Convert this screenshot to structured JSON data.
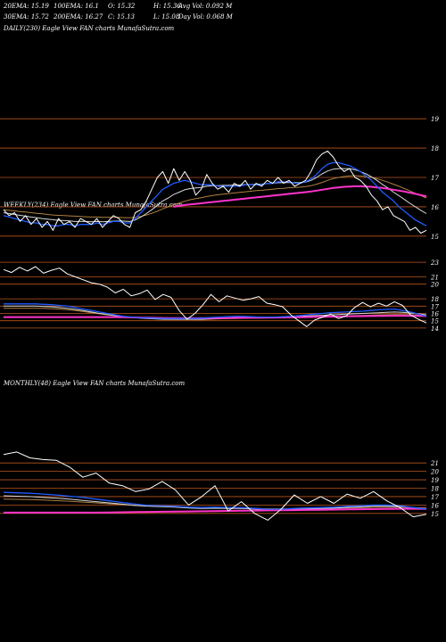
{
  "header": {
    "items": [
      {
        "key": "ema20",
        "text": "20EMA: 15.19"
      },
      {
        "key": "ema100",
        "text": "100EMA: 16.1"
      },
      {
        "key": "open",
        "text": "O: 15.32"
      },
      {
        "key": "high",
        "text": "H: 15.36"
      },
      {
        "key": "avgvol",
        "text": "Avg Vol: 0.092  M"
      },
      {
        "key": "ema30",
        "text": "30EMA: 15.72"
      },
      {
        "key": "ema200",
        "text": "200EMA: 16.27"
      },
      {
        "key": "close",
        "text": "C: 15.13"
      },
      {
        "key": "low",
        "text": "L: 15.08"
      },
      {
        "key": "dayvol",
        "text": "Day Vol: 0.068  M"
      }
    ]
  },
  "colors": {
    "price": "#ffffff",
    "ema_fast": "#1f5bff",
    "ema_mid": "#d8d8d8",
    "ema_slow": "#b08040",
    "ema_long": "#ff33cc",
    "grid": "#b8561e"
  },
  "chart_data": [
    {
      "type": "line",
      "label": "DAILY(230) Eagle  View  FAN  charts MunafaSutra.com",
      "yticks": [
        15,
        16,
        17,
        18,
        19
      ],
      "ylim": [
        14.6,
        19.4
      ],
      "price": [
        15.9,
        15.7,
        15.8,
        15.5,
        15.7,
        15.4,
        15.6,
        15.3,
        15.5,
        15.2,
        15.6,
        15.4,
        15.5,
        15.3,
        15.6,
        15.5,
        15.4,
        15.6,
        15.3,
        15.5,
        15.7,
        15.6,
        15.4,
        15.3,
        15.8,
        15.9,
        16.2,
        16.6,
        17.0,
        17.2,
        16.8,
        17.3,
        16.9,
        17.2,
        16.9,
        16.4,
        16.6,
        17.1,
        16.8,
        16.6,
        16.7,
        16.5,
        16.8,
        16.7,
        16.9,
        16.6,
        16.8,
        16.7,
        16.9,
        16.8,
        17.0,
        16.8,
        16.9,
        16.7,
        16.8,
        16.9,
        17.2,
        17.6,
        17.8,
        17.9,
        17.7,
        17.4,
        17.2,
        17.3,
        17.0,
        16.9,
        16.7,
        16.4,
        16.2,
        15.9,
        16.0,
        15.7,
        15.6,
        15.5,
        15.2,
        15.3,
        15.1,
        15.2
      ],
      "ema_fast": [
        15.7,
        15.65,
        15.6,
        15.55,
        15.5,
        15.45,
        15.45,
        15.4,
        15.4,
        15.35,
        15.35,
        15.4,
        15.4,
        15.35,
        15.4,
        15.4,
        15.4,
        15.45,
        15.4,
        15.45,
        15.5,
        15.5,
        15.45,
        15.45,
        15.6,
        15.8,
        16.0,
        16.2,
        16.4,
        16.6,
        16.7,
        16.8,
        16.85,
        16.9,
        16.85,
        16.8,
        16.75,
        16.75,
        16.75,
        16.7,
        16.7,
        16.7,
        16.7,
        16.7,
        16.75,
        16.75,
        16.75,
        16.75,
        16.8,
        16.8,
        16.85,
        16.85,
        16.85,
        16.8,
        16.8,
        16.85,
        16.95,
        17.1,
        17.3,
        17.45,
        17.5,
        17.5,
        17.45,
        17.4,
        17.3,
        17.2,
        17.05,
        16.9,
        16.7,
        16.5,
        16.35,
        16.2,
        16.0,
        15.85,
        15.7,
        15.55,
        15.45,
        15.35
      ],
      "ema_mid": [
        15.8,
        15.77,
        15.74,
        15.71,
        15.68,
        15.65,
        15.63,
        15.6,
        15.58,
        15.56,
        15.54,
        15.53,
        15.52,
        15.5,
        15.5,
        15.5,
        15.49,
        15.5,
        15.49,
        15.5,
        15.51,
        15.52,
        15.51,
        15.5,
        15.55,
        15.65,
        15.77,
        15.9,
        16.05,
        16.2,
        16.3,
        16.42,
        16.5,
        16.58,
        16.62,
        16.64,
        16.66,
        16.7,
        16.72,
        16.72,
        16.73,
        16.73,
        16.74,
        16.74,
        16.76,
        16.76,
        16.77,
        16.77,
        16.79,
        16.8,
        16.82,
        16.82,
        16.83,
        16.82,
        16.82,
        16.84,
        16.9,
        17.0,
        17.12,
        17.22,
        17.28,
        17.3,
        17.3,
        17.3,
        17.26,
        17.2,
        17.12,
        17.02,
        16.9,
        16.76,
        16.64,
        16.5,
        16.38,
        16.25,
        16.12,
        16.0,
        15.88,
        15.77
      ],
      "ema_slow": [
        15.9,
        15.88,
        15.86,
        15.84,
        15.82,
        15.8,
        15.78,
        15.76,
        15.74,
        15.72,
        15.71,
        15.7,
        15.69,
        15.68,
        15.67,
        15.66,
        15.65,
        15.65,
        15.64,
        15.64,
        15.64,
        15.64,
        15.63,
        15.63,
        15.64,
        15.67,
        15.72,
        15.78,
        15.85,
        15.93,
        16.0,
        16.07,
        16.13,
        16.19,
        16.24,
        16.28,
        16.31,
        16.35,
        16.38,
        16.41,
        16.43,
        16.45,
        16.47,
        16.49,
        16.51,
        16.53,
        16.55,
        16.56,
        16.58,
        16.6,
        16.62,
        16.63,
        16.65,
        16.66,
        16.67,
        16.69,
        16.72,
        16.77,
        16.83,
        16.9,
        16.96,
        17.0,
        17.03,
        17.05,
        17.06,
        17.05,
        17.03,
        17.0,
        16.96,
        16.9,
        16.84,
        16.77,
        16.7,
        16.62,
        16.54,
        16.46,
        16.38,
        16.3
      ],
      "ema_long": [
        null,
        null,
        null,
        null,
        null,
        null,
        null,
        null,
        null,
        null,
        null,
        null,
        null,
        null,
        null,
        null,
        null,
        null,
        null,
        null,
        null,
        null,
        null,
        null,
        null,
        null,
        null,
        null,
        null,
        null,
        null,
        16.0,
        16.03,
        16.06,
        16.08,
        16.1,
        16.12,
        16.14,
        16.16,
        16.18,
        16.2,
        16.22,
        16.24,
        16.26,
        16.28,
        16.3,
        16.32,
        16.34,
        16.36,
        16.38,
        16.4,
        16.42,
        16.44,
        16.46,
        16.48,
        16.5,
        16.52,
        16.55,
        16.58,
        16.61,
        16.64,
        16.66,
        16.68,
        16.69,
        16.7,
        16.7,
        16.69,
        16.68,
        16.66,
        16.64,
        16.61,
        16.58,
        16.55,
        16.52,
        16.48,
        16.44,
        16.4,
        16.36
      ]
    },
    {
      "type": "line",
      "label": "WEEKLY(234) Eagle  View  FAN  charts MunafaSutra.com",
      "yticks": [
        14,
        15,
        16,
        17,
        18,
        20,
        21,
        23
      ],
      "ylim": [
        13.5,
        23.5
      ],
      "price": [
        22.0,
        21.6,
        22.3,
        21.8,
        22.4,
        21.5,
        21.9,
        22.2,
        21.4,
        21.0,
        20.6,
        20.2,
        20.0,
        19.6,
        18.8,
        19.3,
        18.4,
        18.7,
        19.2,
        17.9,
        18.6,
        18.2,
        16.4,
        15.2,
        16.0,
        17.2,
        18.6,
        17.6,
        18.4,
        18.1,
        17.8,
        18.0,
        18.3,
        17.4,
        17.2,
        16.9,
        15.8,
        15.0,
        14.2,
        15.1,
        15.5,
        15.9,
        15.3,
        15.7,
        16.8,
        17.5,
        16.9,
        17.4,
        17.0,
        17.6,
        17.1,
        15.8,
        15.2,
        14.7
      ],
      "ema_fast": [
        17.3,
        17.3,
        17.3,
        17.3,
        17.3,
        17.25,
        17.2,
        17.1,
        17.0,
        16.8,
        16.6,
        16.4,
        16.2,
        16.0,
        15.8,
        15.6,
        15.5,
        15.4,
        15.4,
        15.35,
        15.3,
        15.3,
        15.3,
        15.3,
        15.3,
        15.35,
        15.45,
        15.5,
        15.55,
        15.6,
        15.6,
        15.55,
        15.5,
        15.5,
        15.5,
        15.55,
        15.6,
        15.7,
        15.8,
        15.9,
        16.0,
        16.1,
        16.15,
        16.2,
        16.25,
        16.3,
        16.4,
        16.5,
        16.55,
        16.6,
        16.4,
        16.2,
        15.9,
        15.6
      ],
      "ema_mid": [
        17.0,
        17.0,
        17.0,
        17.0,
        17.0,
        16.95,
        16.9,
        16.8,
        16.7,
        16.55,
        16.4,
        16.2,
        16.0,
        15.85,
        15.7,
        15.55,
        15.45,
        15.35,
        15.3,
        15.25,
        15.2,
        15.2,
        15.2,
        15.2,
        15.2,
        15.2,
        15.25,
        15.3,
        15.35,
        15.4,
        15.45,
        15.45,
        15.45,
        15.45,
        15.5,
        15.5,
        15.55,
        15.6,
        15.65,
        15.7,
        15.75,
        15.8,
        15.85,
        15.9,
        15.95,
        16.0,
        16.05,
        16.1,
        16.15,
        16.2,
        16.15,
        16.05,
        15.95,
        15.8
      ],
      "ema_slow": [
        16.7,
        16.7,
        16.7,
        16.7,
        16.7,
        16.68,
        16.65,
        16.6,
        16.5,
        16.4,
        16.25,
        16.1,
        15.95,
        15.8,
        15.7,
        15.6,
        15.5,
        15.42,
        15.36,
        15.3,
        15.26,
        15.24,
        15.22,
        15.2,
        15.2,
        15.2,
        15.22,
        15.25,
        15.28,
        15.3,
        15.33,
        15.35,
        15.37,
        15.39,
        15.41,
        15.43,
        15.45,
        15.48,
        15.5,
        15.53,
        15.56,
        15.6,
        15.63,
        15.66,
        15.7,
        15.73,
        15.76,
        15.8,
        15.82,
        15.84,
        15.84,
        15.82,
        15.78,
        15.72
      ],
      "ema_long": [
        15.5,
        15.5,
        15.5,
        15.5,
        15.5,
        15.5,
        15.5,
        15.5,
        15.5,
        15.5,
        15.5,
        15.5,
        15.5,
        15.5,
        15.5,
        15.48,
        15.46,
        15.44,
        15.42,
        15.4,
        15.38,
        15.36,
        15.35,
        15.34,
        15.34,
        15.35,
        15.36,
        15.37,
        15.38,
        15.39,
        15.4,
        15.41,
        15.42,
        15.43,
        15.44,
        15.45,
        15.46,
        15.48,
        15.5,
        15.52,
        15.54,
        15.56,
        15.58,
        15.6,
        15.62,
        15.64,
        15.65,
        15.66,
        15.67,
        15.68,
        15.68,
        15.67,
        15.66,
        15.64
      ]
    },
    {
      "type": "line",
      "label": "MONTHLY(48) Eagle  View  FAN  charts MunafaSutra.com",
      "yticks": [
        15,
        16,
        17,
        18,
        19,
        20,
        21
      ],
      "ylim": [
        13.5,
        22.5
      ],
      "price": [
        22.0,
        22.3,
        21.6,
        21.4,
        21.3,
        20.5,
        19.3,
        19.8,
        18.6,
        18.3,
        17.6,
        17.9,
        18.8,
        17.8,
        16.0,
        17.0,
        18.3,
        15.3,
        16.4,
        15.0,
        14.2,
        15.5,
        17.2,
        16.2,
        17.0,
        16.2,
        17.3,
        16.8,
        17.6,
        16.5,
        15.7,
        14.6,
        14.9
      ],
      "ema_fast": [
        17.5,
        17.45,
        17.4,
        17.3,
        17.2,
        17.05,
        16.9,
        16.7,
        16.5,
        16.3,
        16.1,
        15.95,
        15.9,
        15.85,
        15.75,
        15.7,
        15.75,
        15.7,
        15.7,
        15.6,
        15.5,
        15.5,
        15.6,
        15.65,
        15.7,
        15.75,
        15.85,
        15.9,
        16.0,
        16.0,
        15.9,
        15.7,
        15.5
      ],
      "ema_mid": [
        17.1,
        17.05,
        17.0,
        16.9,
        16.8,
        16.7,
        16.55,
        16.4,
        16.25,
        16.1,
        15.95,
        15.85,
        15.8,
        15.75,
        15.65,
        15.6,
        15.62,
        15.6,
        15.6,
        15.52,
        15.45,
        15.45,
        15.5,
        15.55,
        15.6,
        15.65,
        15.72,
        15.78,
        15.85,
        15.86,
        15.82,
        15.7,
        15.58
      ],
      "ema_slow": [
        16.7,
        16.68,
        16.65,
        16.6,
        16.52,
        16.45,
        16.35,
        16.25,
        16.15,
        16.05,
        15.95,
        15.88,
        15.83,
        15.78,
        15.72,
        15.68,
        15.67,
        15.65,
        15.64,
        15.6,
        15.56,
        15.55,
        15.56,
        15.58,
        15.6,
        15.63,
        15.67,
        15.7,
        15.74,
        15.76,
        15.75,
        15.7,
        15.64
      ],
      "ema_long": [
        15.1,
        15.1,
        15.1,
        15.1,
        15.1,
        15.1,
        15.1,
        15.1,
        15.12,
        15.14,
        15.16,
        15.18,
        15.2,
        15.22,
        15.24,
        15.26,
        15.28,
        15.3,
        15.32,
        15.34,
        15.36,
        15.38,
        15.4,
        15.42,
        15.44,
        15.46,
        15.48,
        15.5,
        15.52,
        15.54,
        15.55,
        15.55,
        15.54
      ]
    }
  ]
}
